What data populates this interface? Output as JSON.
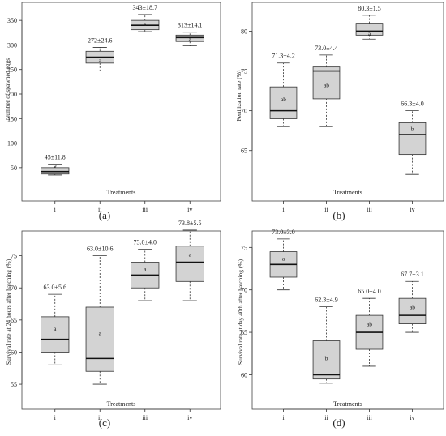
{
  "chart_data": [
    {
      "type": "boxplot",
      "panel_label": "(a)",
      "xlabel": "Treatments",
      "ylabel": "Number of spawned eggs",
      "categories": [
        "i",
        "ii",
        "iii",
        "iv"
      ],
      "ylim": [
        25,
        375
      ],
      "yticks": [
        50,
        100,
        150,
        200,
        250,
        300,
        350
      ],
      "boxes": [
        {
          "min": 35,
          "q1": 37,
          "median": 42,
          "q3": 50,
          "max": 57,
          "mean_sd": "45±11.8",
          "group": "b"
        },
        {
          "min": 247,
          "q1": 263,
          "median": 275,
          "q3": 287,
          "max": 295,
          "mean_sd": "272±24.6",
          "group": "a"
        },
        {
          "min": 327,
          "q1": 331,
          "median": 340,
          "q3": 350,
          "max": 362,
          "mean_sd": "343±18.7",
          "group": "a"
        },
        {
          "min": 298,
          "q1": 307,
          "median": 315,
          "q3": 320,
          "max": 326,
          "mean_sd": "313±14.1",
          "group": "a"
        }
      ]
    },
    {
      "type": "boxplot",
      "panel_label": "(b)",
      "xlabel": "Treatments",
      "ylabel": "Fertilization rate (%)",
      "categories": [
        "i",
        "ii",
        "iii",
        "iv"
      ],
      "ylim": [
        61,
        83
      ],
      "yticks": [
        65,
        70,
        75,
        80
      ],
      "boxes": [
        {
          "min": 68,
          "q1": 69,
          "median": 70,
          "q3": 73,
          "max": 76,
          "mean_sd": "71.3±4.2",
          "group": "ab"
        },
        {
          "min": 68,
          "q1": 71.5,
          "median": 75,
          "q3": 75.5,
          "max": 77,
          "mean_sd": "73.0±4.4",
          "group": "ab"
        },
        {
          "min": 79,
          "q1": 79.5,
          "median": 80,
          "q3": 81,
          "max": 82,
          "mean_sd": "80.3±1.5",
          "group": "a"
        },
        {
          "min": 62,
          "q1": 64.5,
          "median": 67,
          "q3": 68.5,
          "max": 70,
          "mean_sd": "66.3±4.0",
          "group": "b"
        }
      ]
    },
    {
      "type": "boxplot",
      "panel_label": "(c)",
      "xlabel": "Treatments",
      "ylabel": "Survival rate at 24 hours after hatching (%)",
      "categories": [
        "i",
        "ii",
        "iii",
        "iv"
      ],
      "ylim": [
        54,
        80
      ],
      "yticks": [
        55,
        60,
        65,
        70,
        75
      ],
      "boxes": [
        {
          "min": 58,
          "q1": 60,
          "median": 62,
          "q3": 65.5,
          "max": 69,
          "mean_sd": "63.0±5.6",
          "group": "a"
        },
        {
          "min": 55,
          "q1": 57,
          "median": 59,
          "q3": 67,
          "max": 75,
          "mean_sd": "63.0±10.6",
          "group": "a"
        },
        {
          "min": 68,
          "q1": 70,
          "median": 72,
          "q3": 74,
          "max": 76,
          "mean_sd": "73.0±4.0",
          "group": "a"
        },
        {
          "min": 68,
          "q1": 71,
          "median": 74,
          "q3": 76.5,
          "max": 79,
          "mean_sd": "73.8±5.5",
          "group": "a"
        }
      ]
    },
    {
      "type": "boxplot",
      "panel_label": "(d)",
      "xlabel": "Treatments",
      "ylabel": "Survival rate at day 40th after hatching (%)",
      "categories": [
        "i",
        "ii",
        "iii",
        "iv"
      ],
      "ylim": [
        58.8,
        77.8
      ],
      "yticks": [
        60,
        65,
        70,
        75
      ],
      "boxes": [
        {
          "min": 70,
          "q1": 71.5,
          "median": 73,
          "q3": 74.5,
          "max": 76,
          "mean_sd": "73.0±3.0",
          "group": "a"
        },
        {
          "min": 59,
          "q1": 59.5,
          "median": 60,
          "q3": 64,
          "max": 68,
          "mean_sd": "62.3±4.9",
          "group": "b"
        },
        {
          "min": 61,
          "q1": 63,
          "median": 65,
          "q3": 67,
          "max": 69,
          "mean_sd": "65.0±4.0",
          "group": "ab"
        },
        {
          "min": 65,
          "q1": 66,
          "median": 67,
          "q3": 69,
          "max": 71,
          "mean_sd": "67.7±3.1",
          "group": "ab"
        }
      ]
    }
  ]
}
